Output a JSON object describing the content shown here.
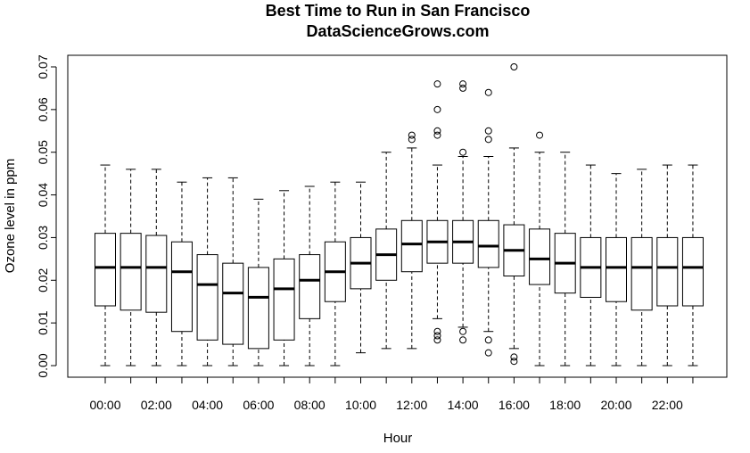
{
  "chart_data": {
    "type": "boxplot",
    "title": "Best Time to Run in San Francisco",
    "subtitle": "DataScienceGrows.com",
    "xlabel": "Hour",
    "ylabel": "Ozone level in ppm",
    "ylim": [
      0,
      0.07
    ],
    "yticks": [
      "0.00",
      "0.01",
      "0.02",
      "0.03",
      "0.04",
      "0.05",
      "0.06",
      "0.07"
    ],
    "categories": [
      "00:00",
      "01:00",
      "02:00",
      "03:00",
      "04:00",
      "05:00",
      "06:00",
      "07:00",
      "08:00",
      "09:00",
      "10:00",
      "11:00",
      "12:00",
      "13:00",
      "14:00",
      "15:00",
      "16:00",
      "17:00",
      "18:00",
      "19:00",
      "20:00",
      "21:00",
      "22:00",
      "23:00"
    ],
    "xtick_labels_shown": [
      "00:00",
      "02:00",
      "04:00",
      "06:00",
      "08:00",
      "10:00",
      "12:00",
      "14:00",
      "16:00",
      "18:00",
      "20:00",
      "22:00"
    ],
    "boxes": [
      {
        "min": 0.0,
        "q1": 0.014,
        "median": 0.023,
        "q3": 0.031,
        "max": 0.047,
        "outliers": []
      },
      {
        "min": 0.0,
        "q1": 0.013,
        "median": 0.023,
        "q3": 0.031,
        "max": 0.046,
        "outliers": []
      },
      {
        "min": 0.0,
        "q1": 0.0125,
        "median": 0.023,
        "q3": 0.0305,
        "max": 0.046,
        "outliers": []
      },
      {
        "min": 0.0,
        "q1": 0.008,
        "median": 0.022,
        "q3": 0.029,
        "max": 0.043,
        "outliers": []
      },
      {
        "min": 0.0,
        "q1": 0.006,
        "median": 0.019,
        "q3": 0.026,
        "max": 0.044,
        "outliers": []
      },
      {
        "min": 0.0,
        "q1": 0.005,
        "median": 0.017,
        "q3": 0.024,
        "max": 0.044,
        "outliers": []
      },
      {
        "min": 0.0,
        "q1": 0.004,
        "median": 0.016,
        "q3": 0.023,
        "max": 0.039,
        "outliers": []
      },
      {
        "min": 0.0,
        "q1": 0.006,
        "median": 0.018,
        "q3": 0.025,
        "max": 0.041,
        "outliers": []
      },
      {
        "min": 0.0,
        "q1": 0.011,
        "median": 0.02,
        "q3": 0.026,
        "max": 0.042,
        "outliers": []
      },
      {
        "min": 0.0,
        "q1": 0.015,
        "median": 0.022,
        "q3": 0.029,
        "max": 0.043,
        "outliers": []
      },
      {
        "min": 0.003,
        "q1": 0.018,
        "median": 0.024,
        "q3": 0.03,
        "max": 0.043,
        "outliers": []
      },
      {
        "min": 0.004,
        "q1": 0.02,
        "median": 0.026,
        "q3": 0.032,
        "max": 0.05,
        "outliers": []
      },
      {
        "min": 0.004,
        "q1": 0.022,
        "median": 0.0285,
        "q3": 0.034,
        "max": 0.051,
        "outliers": [
          0.053,
          0.054
        ]
      },
      {
        "min": 0.011,
        "q1": 0.024,
        "median": 0.029,
        "q3": 0.034,
        "max": 0.047,
        "outliers": [
          0.054,
          0.055,
          0.06,
          0.066,
          0.006,
          0.007,
          0.008
        ]
      },
      {
        "min": 0.009,
        "q1": 0.024,
        "median": 0.029,
        "q3": 0.034,
        "max": 0.049,
        "outliers": [
          0.05,
          0.065,
          0.066,
          0.006,
          0.008
        ]
      },
      {
        "min": 0.008,
        "q1": 0.023,
        "median": 0.028,
        "q3": 0.034,
        "max": 0.049,
        "outliers": [
          0.053,
          0.055,
          0.064,
          0.003,
          0.006
        ]
      },
      {
        "min": 0.004,
        "q1": 0.021,
        "median": 0.027,
        "q3": 0.033,
        "max": 0.051,
        "outliers": [
          0.07,
          0.001,
          0.002
        ]
      },
      {
        "min": 0.0,
        "q1": 0.019,
        "median": 0.025,
        "q3": 0.032,
        "max": 0.05,
        "outliers": [
          0.054
        ]
      },
      {
        "min": 0.0,
        "q1": 0.017,
        "median": 0.024,
        "q3": 0.031,
        "max": 0.05,
        "outliers": []
      },
      {
        "min": 0.0,
        "q1": 0.016,
        "median": 0.023,
        "q3": 0.03,
        "max": 0.047,
        "outliers": []
      },
      {
        "min": 0.0,
        "q1": 0.015,
        "median": 0.023,
        "q3": 0.03,
        "max": 0.045,
        "outliers": []
      },
      {
        "min": 0.0,
        "q1": 0.013,
        "median": 0.023,
        "q3": 0.03,
        "max": 0.046,
        "outliers": []
      },
      {
        "min": 0.0,
        "q1": 0.014,
        "median": 0.023,
        "q3": 0.03,
        "max": 0.047,
        "outliers": []
      },
      {
        "min": 0.0,
        "q1": 0.014,
        "median": 0.023,
        "q3": 0.03,
        "max": 0.047,
        "outliers": []
      }
    ]
  }
}
